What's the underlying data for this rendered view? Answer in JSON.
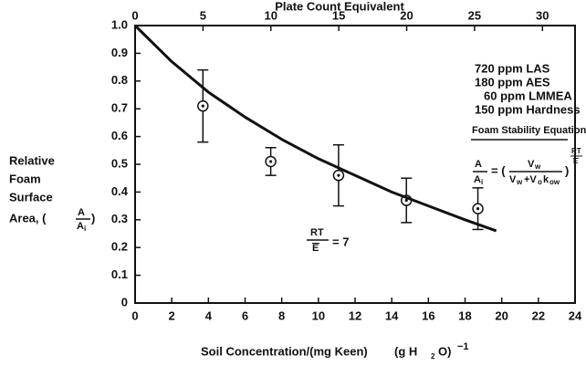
{
  "chart_data": {
    "type": "scatter",
    "x2_label": "Plate Count Equivalent",
    "x_label": {
      "main": "Soil Concentration/(mg Keen)",
      "paren_open": "(g H",
      "sub": "2",
      "paren_close": "O)",
      "sup": "−1"
    },
    "y_label": {
      "lines": [
        "Relative",
        "Foam",
        "Surface",
        "Area, ("
      ],
      "frac_num": "A",
      "frac_den": "A",
      "frac_den_sub": "i",
      "close": ")"
    },
    "xlim": [
      0,
      24
    ],
    "xticks": [
      0,
      2,
      4,
      6,
      8,
      10,
      12,
      14,
      16,
      18,
      20,
      22,
      24
    ],
    "x2lim": [
      0,
      32.4
    ],
    "x2ticks": [
      0,
      5,
      10,
      15,
      20,
      25,
      30
    ],
    "ylim": [
      0,
      1
    ],
    "yticks": [
      0,
      0.1,
      0.2,
      0.3,
      0.4,
      0.5,
      0.6,
      0.7,
      0.8,
      0.9,
      {
        "value": 1,
        "label": "1.0"
      }
    ],
    "color": "#111111",
    "series": [
      {
        "type": "scatter",
        "x": [
          3.7,
          7.4,
          11.1,
          14.8,
          18.7
        ],
        "values": [
          0.71,
          0.51,
          0.46,
          0.37,
          0.34
        ],
        "errors": [
          0.13,
          0.05,
          0.11,
          0.08,
          0.075
        ]
      },
      {
        "type": "line",
        "x": [
          0,
          2,
          4,
          6,
          8,
          10,
          12,
          14,
          16,
          18,
          19.7
        ],
        "values": [
          1.0,
          0.87,
          0.76,
          0.67,
          0.59,
          0.52,
          0.46,
          0.4,
          0.35,
          0.3,
          0.26
        ]
      }
    ],
    "legend_lines": [
      "720 ppm LAS",
      "180 ppm AES",
      "60 ppm LMMEA",
      "150 ppm Hardness"
    ],
    "equation_title": "Foam Stability Equation",
    "equation": {
      "lhs_num": "A",
      "lhs_den": "A",
      "lhs_den_sub": "i",
      "eq": "= (",
      "num": "V",
      "num_sub": "w",
      "den_a": "V",
      "den_a_sub": "w",
      "den_b": "+V",
      "den_b_sub": "o",
      "den_c": "k",
      "den_c_sub": "ow",
      "close": ")",
      "exp_num": "RT",
      "exp_den": "E"
    },
    "annotation": {
      "num": "RT",
      "den": "E",
      "rest": "= 7"
    }
  }
}
